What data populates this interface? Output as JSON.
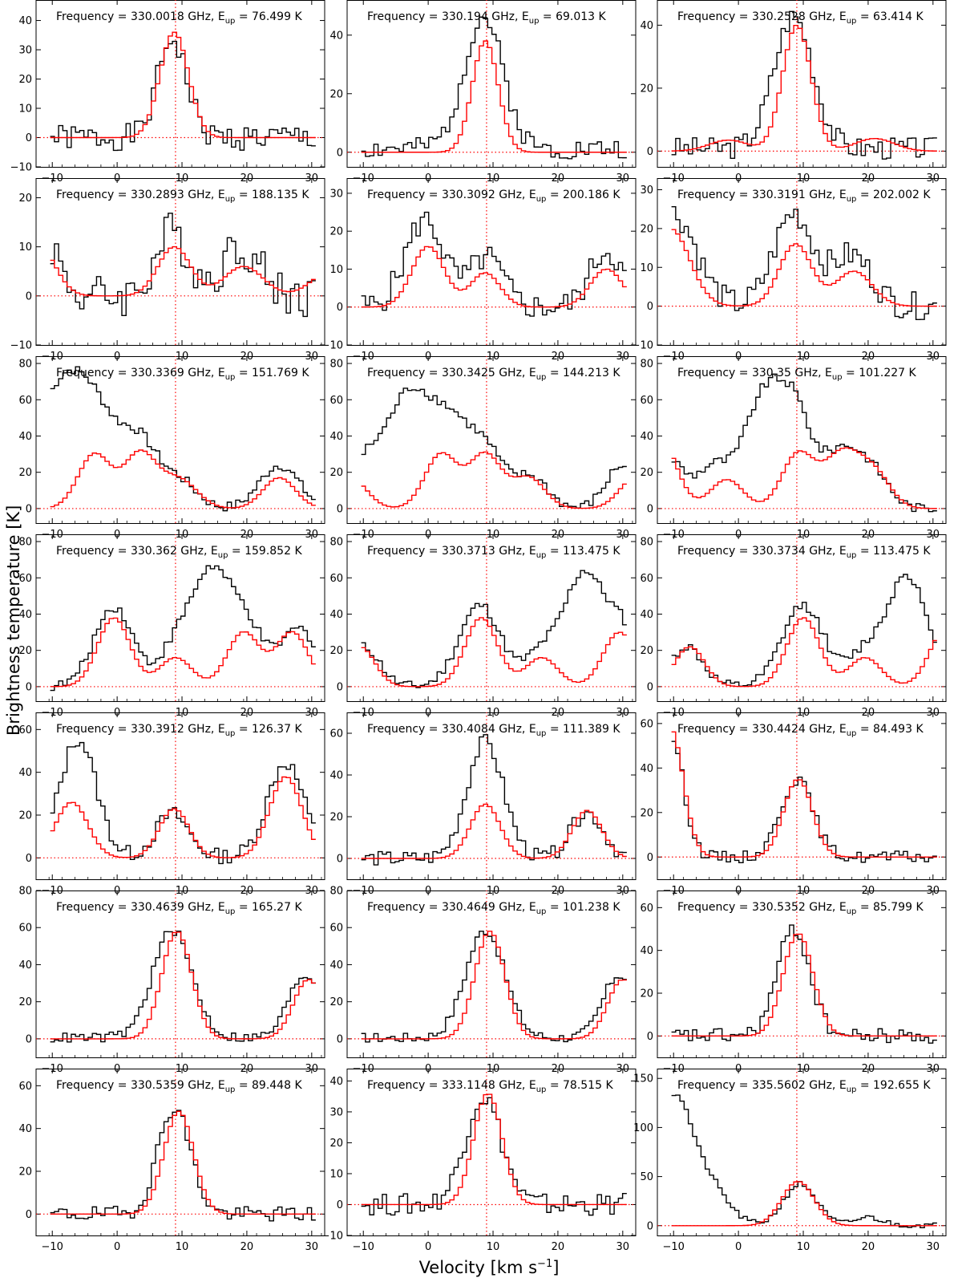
{
  "figure": {
    "ylabel": "Brightness temperature [K]",
    "xlabel_main": "Velocity [km s",
    "xlabel_sup": "−1",
    "xlabel_end": "]",
    "colors": {
      "observed": "#000000",
      "model": "#ff0000",
      "guides": "#ff0000"
    }
  },
  "chart_data": [
    {
      "type": "line",
      "freq": "330.0018",
      "eup": "76.499",
      "xlim": [
        -12.5,
        32
      ],
      "ylim": [
        -10,
        47
      ],
      "yticks": [
        -10,
        0,
        10,
        20,
        30,
        40
      ],
      "xticks": [
        -10,
        0,
        10,
        20,
        30
      ],
      "vline": 9,
      "model": [
        {
          "c": 8.8,
          "a": 36,
          "w": 2.2
        }
      ],
      "obs_peak": [
        {
          "c": 8.5,
          "a": 34,
          "w": 2.2
        }
      ],
      "base_obs": 0,
      "noise": 5,
      "seed": 1
    },
    {
      "type": "line",
      "freq": "330.194",
      "eup": "69.013",
      "xlim": [
        -12.5,
        32
      ],
      "ylim": [
        -5,
        52
      ],
      "yticks": [
        0,
        20,
        40
      ],
      "xticks": [
        -10,
        0,
        10,
        20,
        30
      ],
      "vline": 9,
      "model": [
        {
          "c": 8.8,
          "a": 38,
          "w": 2.0
        }
      ],
      "obs_peak": [
        {
          "c": 8.5,
          "a": 45,
          "w": 3.0
        }
      ],
      "base_obs": 4,
      "noise": 4,
      "seed": 2
    },
    {
      "type": "line",
      "freq": "330.2528",
      "eup": "63.414",
      "xlim": [
        -12.5,
        32
      ],
      "ylim": [
        -5,
        48
      ],
      "yticks": [
        0,
        20,
        40
      ],
      "xticks": [
        -10,
        0,
        10,
        20,
        30
      ],
      "vline": 9,
      "model": [
        {
          "c": 9.0,
          "a": 40,
          "w": 2.2
        },
        {
          "c": -1.5,
          "a": 3.5,
          "w": 3.0
        },
        {
          "c": 21,
          "a": 4,
          "w": 3.0
        }
      ],
      "obs_peak": [
        {
          "c": 8.5,
          "a": 42,
          "w": 3.0
        }
      ],
      "base_obs": 3,
      "noise": 4,
      "seed": 3
    },
    {
      "type": "line",
      "freq": "330.2893",
      "eup": "188.135",
      "xlim": [
        -12.5,
        32
      ],
      "ylim": [
        -10,
        24
      ],
      "yticks": [
        -10,
        0,
        10,
        20
      ],
      "xticks": [
        -10,
        0,
        10,
        20,
        30
      ],
      "vline": 9,
      "model": [
        {
          "c": 8.8,
          "a": 10,
          "w": 2.5
        },
        {
          "c": 19.5,
          "a": 6,
          "w": 3.0
        },
        {
          "c": -12,
          "a": 10,
          "w": 2.5
        },
        {
          "c": 33,
          "a": 5,
          "w": 3.0
        }
      ],
      "obs_peak": [
        {
          "c": 8.5,
          "a": 13,
          "w": 2.5
        },
        {
          "c": 19,
          "a": 10,
          "w": 3.0
        },
        {
          "c": -11,
          "a": 12,
          "w": 2.0
        }
      ],
      "base_obs": 0,
      "noise": 5,
      "seed": 4
    },
    {
      "type": "line",
      "freq": "330.3092",
      "eup": "200.186",
      "xlim": [
        -12.5,
        32
      ],
      "ylim": [
        -10,
        34
      ],
      "yticks": [
        -10,
        0,
        10,
        20,
        30
      ],
      "xticks": [
        -10,
        0,
        10,
        20,
        30
      ],
      "vline": 9,
      "model": [
        {
          "c": 0,
          "a": 16,
          "w": 2.5
        },
        {
          "c": 8.8,
          "a": 9,
          "w": 2.3
        },
        {
          "c": 27.5,
          "a": 10,
          "w": 2.5
        }
      ],
      "obs_peak": [
        {
          "c": -0.5,
          "a": 23,
          "w": 3.0
        },
        {
          "c": 9,
          "a": 13,
          "w": 2.5
        },
        {
          "c": 27.5,
          "a": 15,
          "w": 2.5
        }
      ],
      "base_obs": 0,
      "noise": 4,
      "seed": 5
    },
    {
      "type": "line",
      "freq": "330.3191",
      "eup": "202.002",
      "xlim": [
        -12.5,
        32
      ],
      "ylim": [
        -10,
        33
      ],
      "yticks": [
        -10,
        0,
        10,
        20,
        30
      ],
      "xticks": [
        -10,
        0,
        10,
        20,
        30
      ],
      "vline": 9,
      "model": [
        {
          "c": -10.5,
          "a": 20,
          "w": 3.0
        },
        {
          "c": 8.8,
          "a": 16,
          "w": 2.5
        },
        {
          "c": 17.8,
          "a": 9,
          "w": 2.8
        }
      ],
      "obs_peak": [
        {
          "c": -10,
          "a": 24,
          "w": 3.5
        },
        {
          "c": 8.5,
          "a": 24,
          "w": 3.0
        },
        {
          "c": 17.5,
          "a": 13,
          "w": 3.0
        }
      ],
      "base_obs": 0,
      "noise": 4,
      "seed": 6
    },
    {
      "type": "line",
      "freq": "330.3369",
      "eup": "151.769",
      "xlim": [
        -12.5,
        32
      ],
      "ylim": [
        -8,
        84
      ],
      "yticks": [
        0,
        20,
        40,
        60,
        80
      ],
      "xticks": [
        -10,
        0,
        10,
        20,
        30
      ],
      "vline": 9,
      "model": [
        {
          "c": -3.5,
          "a": 30,
          "w": 2.5
        },
        {
          "c": 3.5,
          "a": 30,
          "w": 2.5
        },
        {
          "c": 9.5,
          "a": 16,
          "w": 2.8
        },
        {
          "c": 25,
          "a": 17,
          "w": 2.5
        }
      ],
      "obs_peak": [
        {
          "c": -9,
          "a": 62,
          "w": 4.0
        },
        {
          "c": -3,
          "a": 42,
          "w": 3.5
        },
        {
          "c": 3.5,
          "a": 33,
          "w": 2.8
        },
        {
          "c": 9.5,
          "a": 15,
          "w": 2.8
        },
        {
          "c": 25,
          "a": 24,
          "w": 3.0
        }
      ],
      "base_obs": 0,
      "noise": 3,
      "seed": 7
    },
    {
      "type": "line",
      "freq": "330.3425",
      "eup": "144.213",
      "xlim": [
        -12.5,
        32
      ],
      "ylim": [
        -8,
        84
      ],
      "yticks": [
        0,
        20,
        40,
        60,
        80
      ],
      "xticks": [
        -10,
        0,
        10,
        20,
        30
      ],
      "vline": 9,
      "model": [
        {
          "c": -12,
          "a": 17,
          "w": 2.5
        },
        {
          "c": 2,
          "a": 30,
          "w": 2.5
        },
        {
          "c": 8.8,
          "a": 30,
          "w": 2.5
        },
        {
          "c": 15.5,
          "a": 17,
          "w": 2.5
        },
        {
          "c": 32,
          "a": 17,
          "w": 2.5
        }
      ],
      "obs_peak": [
        {
          "c": -10,
          "a": 22,
          "w": 2.5
        },
        {
          "c": -3,
          "a": 62,
          "w": 3.5
        },
        {
          "c": 3.5,
          "a": 40,
          "w": 3.0
        },
        {
          "c": 9,
          "a": 30,
          "w": 2.8
        },
        {
          "c": 16,
          "a": 17,
          "w": 2.5
        },
        {
          "c": 30,
          "a": 24,
          "w": 2.5
        }
      ],
      "base_obs": 0,
      "noise": 3,
      "seed": 8
    },
    {
      "type": "line",
      "freq": "330.35",
      "eup": "101.227",
      "xlim": [
        -12.5,
        32
      ],
      "ylim": [
        -8,
        84
      ],
      "yticks": [
        0,
        20,
        40,
        60,
        80
      ],
      "xticks": [
        -10,
        0,
        10,
        20,
        30
      ],
      "vline": 9,
      "model": [
        {
          "c": -12,
          "a": 38,
          "w": 2.5
        },
        {
          "c": -1.8,
          "a": 16,
          "w": 2.5
        },
        {
          "c": 9.2,
          "a": 30,
          "w": 2.5
        },
        {
          "c": 16,
          "a": 30,
          "w": 2.8
        },
        {
          "c": 21,
          "a": 18,
          "w": 2.5
        }
      ],
      "obs_peak": [
        {
          "c": -11,
          "a": 28,
          "w": 2.5
        },
        {
          "c": -4,
          "a": 22,
          "w": 2.5
        },
        {
          "c": 4,
          "a": 62,
          "w": 3.2
        },
        {
          "c": 9,
          "a": 42,
          "w": 2.5
        },
        {
          "c": 16,
          "a": 32,
          "w": 3.0
        },
        {
          "c": 21,
          "a": 16,
          "w": 2.5
        }
      ],
      "base_obs": 0,
      "noise": 3,
      "seed": 9
    },
    {
      "type": "line",
      "freq": "330.362",
      "eup": "159.852",
      "xlim": [
        -12.5,
        32
      ],
      "ylim": [
        -8,
        84
      ],
      "yticks": [
        0,
        20,
        40,
        60,
        80
      ],
      "xticks": [
        -10,
        0,
        10,
        20,
        30
      ],
      "vline": 9,
      "model": [
        {
          "c": -0.5,
          "a": 38,
          "w": 2.5
        },
        {
          "c": 9,
          "a": 16,
          "w": 2.5
        },
        {
          "c": 19.5,
          "a": 30,
          "w": 2.5
        },
        {
          "c": 27,
          "a": 30,
          "w": 2.5
        }
      ],
      "obs_peak": [
        {
          "c": -0.5,
          "a": 44,
          "w": 3.0
        },
        {
          "c": 9,
          "a": 20,
          "w": 2.5
        },
        {
          "c": 14.5,
          "a": 62,
          "w": 3.0
        },
        {
          "c": 20,
          "a": 30,
          "w": 2.5
        },
        {
          "c": 28,
          "a": 32,
          "w": 3.0
        }
      ],
      "base_obs": 0,
      "noise": 3,
      "seed": 10
    },
    {
      "type": "line",
      "freq": "330.3713",
      "eup": "113.475",
      "xlim": [
        -12.5,
        32
      ],
      "ylim": [
        -8,
        84
      ],
      "yticks": [
        0,
        20,
        40,
        60,
        80
      ],
      "xticks": [
        -10,
        0,
        10,
        20,
        30
      ],
      "vline": 9,
      "model": [
        {
          "c": -10.5,
          "a": 22,
          "w": 2.3
        },
        {
          "c": 8.2,
          "a": 38,
          "w": 2.5
        },
        {
          "c": 17.5,
          "a": 16,
          "w": 2.5
        },
        {
          "c": 29.5,
          "a": 30,
          "w": 2.5
        }
      ],
      "obs_peak": [
        {
          "c": -10,
          "a": 22,
          "w": 2.5
        },
        {
          "c": 8,
          "a": 45,
          "w": 3.2
        },
        {
          "c": 17.5,
          "a": 18,
          "w": 2.5
        },
        {
          "c": 24,
          "a": 62,
          "w": 3.0
        },
        {
          "c": 30,
          "a": 30,
          "w": 2.5
        }
      ],
      "base_obs": 0,
      "noise": 3,
      "seed": 11
    },
    {
      "type": "line",
      "freq": "330.3734",
      "eup": "113.475",
      "xlim": [
        -12.5,
        32
      ],
      "ylim": [
        -8,
        84
      ],
      "yticks": [
        0,
        20,
        40,
        60,
        80
      ],
      "xticks": [
        -10,
        0,
        10,
        20,
        30
      ],
      "vline": 9,
      "model": [
        {
          "c": -7.5,
          "a": 22,
          "w": 2.3
        },
        {
          "c": 10,
          "a": 38,
          "w": 2.5
        },
        {
          "c": 19.5,
          "a": 16,
          "w": 2.5
        },
        {
          "c": 32,
          "a": 32,
          "w": 2.5
        }
      ],
      "obs_peak": [
        {
          "c": -8,
          "a": 22,
          "w": 2.5
        },
        {
          "c": 10,
          "a": 45,
          "w": 3.2
        },
        {
          "c": 19.5,
          "a": 18,
          "w": 2.5
        },
        {
          "c": 26,
          "a": 62,
          "w": 3.0
        }
      ],
      "base_obs": 0,
      "noise": 3,
      "seed": 12
    },
    {
      "type": "line",
      "freq": "330.3912",
      "eup": "126.37",
      "xlim": [
        -12.5,
        32
      ],
      "ylim": [
        -10,
        68
      ],
      "yticks": [
        0,
        20,
        40,
        60
      ],
      "xticks": [
        -10,
        0,
        10,
        20,
        30
      ],
      "vline": 9,
      "model": [
        {
          "c": -7,
          "a": 26,
          "w": 2.5
        },
        {
          "c": 8.8,
          "a": 23,
          "w": 2.3
        },
        {
          "c": 26,
          "a": 38,
          "w": 2.5
        }
      ],
      "obs_peak": [
        {
          "c": -6,
          "a": 55,
          "w": 2.8
        },
        {
          "c": 8.5,
          "a": 20,
          "w": 2.5
        },
        {
          "c": 26,
          "a": 44,
          "w": 2.8
        }
      ],
      "base_obs": 2,
      "noise": 4,
      "seed": 13
    },
    {
      "type": "line",
      "freq": "330.4084",
      "eup": "111.389",
      "xlim": [
        -12.5,
        32
      ],
      "ylim": [
        -10,
        70
      ],
      "yticks": [
        0,
        20,
        40,
        60
      ],
      "xticks": [
        -10,
        0,
        10,
        20,
        30
      ],
      "vline": 9,
      "model": [
        {
          "c": 8.8,
          "a": 26,
          "w": 2.3
        },
        {
          "c": 24.5,
          "a": 23,
          "w": 2.3
        }
      ],
      "obs_peak": [
        {
          "c": 8.8,
          "a": 56,
          "w": 2.8
        },
        {
          "c": 24.5,
          "a": 22,
          "w": 2.5
        }
      ],
      "base_obs": 0,
      "noise": 4,
      "seed": 14
    },
    {
      "type": "line",
      "freq": "330.4424",
      "eup": "84.493",
      "xlim": [
        -12.5,
        32
      ],
      "ylim": [
        -10,
        65
      ],
      "yticks": [
        0,
        20,
        40,
        60
      ],
      "xticks": [
        -10,
        0,
        10,
        20,
        30
      ],
      "vline": 9,
      "model": [
        {
          "c": -10.5,
          "a": 58,
          "w": 2.0
        },
        {
          "c": 9.2,
          "a": 35,
          "w": 2.2
        }
      ],
      "obs_peak": [
        {
          "c": -10.5,
          "a": 55,
          "w": 2.0
        },
        {
          "c": 9,
          "a": 35,
          "w": 2.5
        }
      ],
      "base_obs": 0,
      "noise": 3,
      "seed": 15
    },
    {
      "type": "line",
      "freq": "330.4639",
      "eup": "165.27",
      "xlim": [
        -12.5,
        32
      ],
      "ylim": [
        -10,
        80
      ],
      "yticks": [
        0,
        20,
        40,
        60,
        80
      ],
      "xticks": [
        -10,
        0,
        10,
        20,
        30
      ],
      "vline": 9,
      "model": [
        {
          "c": 9.2,
          "a": 58,
          "w": 2.3
        },
        {
          "c": 29.5,
          "a": 32,
          "w": 2.3
        }
      ],
      "obs_peak": [
        {
          "c": 8.5,
          "a": 58,
          "w": 3.0
        },
        {
          "c": 29,
          "a": 34,
          "w": 2.5
        }
      ],
      "base_obs": 2,
      "noise": 3,
      "seed": 16
    },
    {
      "type": "line",
      "freq": "330.4649",
      "eup": "101.238",
      "xlim": [
        -12.5,
        32
      ],
      "ylim": [
        -10,
        80
      ],
      "yticks": [
        0,
        20,
        40,
        60,
        80
      ],
      "xticks": [
        -10,
        0,
        10,
        20,
        30
      ],
      "vline": 9,
      "model": [
        {
          "c": 9.5,
          "a": 58,
          "w": 2.3
        },
        {
          "c": 30,
          "a": 32,
          "w": 2.3
        }
      ],
      "obs_peak": [
        {
          "c": 8.8,
          "a": 58,
          "w": 3.0
        },
        {
          "c": 29.5,
          "a": 34,
          "w": 2.5
        }
      ],
      "base_obs": 2,
      "noise": 3,
      "seed": 17
    },
    {
      "type": "line",
      "freq": "330.5352",
      "eup": "85.799",
      "xlim": [
        -12.5,
        32
      ],
      "ylim": [
        -10,
        68
      ],
      "yticks": [
        0,
        20,
        40,
        60
      ],
      "xticks": [
        -10,
        0,
        10,
        20,
        30
      ],
      "vline": 9,
      "model": [
        {
          "c": 9.2,
          "a": 48,
          "w": 2.3
        }
      ],
      "obs_peak": [
        {
          "c": 8.5,
          "a": 50,
          "w": 2.5
        }
      ],
      "base_obs": 0,
      "noise": 4,
      "seed": 18
    },
    {
      "type": "line",
      "freq": "330.5359",
      "eup": "89.448",
      "xlim": [
        -12.5,
        32
      ],
      "ylim": [
        -10,
        68
      ],
      "yticks": [
        0,
        20,
        40,
        60
      ],
      "xticks": [
        -10,
        0,
        10,
        20,
        30
      ],
      "vline": 9,
      "model": [
        {
          "c": 9.5,
          "a": 48,
          "w": 2.3
        }
      ],
      "obs_peak": [
        {
          "c": 8.8,
          "a": 50,
          "w": 2.5
        }
      ],
      "base_obs": 0,
      "noise": 4,
      "seed": 19
    },
    {
      "type": "line",
      "freq": "333.1148",
      "eup": "78.515",
      "xlim": [
        -12.5,
        32
      ],
      "ylim": [
        -10,
        44
      ],
      "yticks": [
        -10,
        0,
        10,
        20,
        30,
        40
      ],
      "xticks": [
        -10,
        0,
        10,
        20,
        30
      ],
      "vline": 9,
      "model": [
        {
          "c": 9.2,
          "a": 36,
          "w": 2.2
        }
      ],
      "obs_peak": [
        {
          "c": 8.5,
          "a": 35,
          "w": 2.8
        }
      ],
      "base_obs": 0,
      "noise": 4,
      "seed": 20
    },
    {
      "type": "line",
      "freq": "335.5602",
      "eup": "192.655",
      "xlim": [
        -12.5,
        32
      ],
      "ylim": [
        -10,
        160
      ],
      "yticks": [
        0,
        50,
        100,
        150
      ],
      "xticks": [
        -10,
        0,
        10,
        20,
        30
      ],
      "vline": 9,
      "model": [
        {
          "c": 9.2,
          "a": 45,
          "w": 2.5
        }
      ],
      "obs_peak": [
        {
          "c": -10,
          "a": 122,
          "w": 2.5
        },
        {
          "c": -5,
          "a": 45,
          "w": 3.0
        },
        {
          "c": 9.5,
          "a": 42,
          "w": 2.5
        },
        {
          "c": 20,
          "a": 8,
          "w": 2.0
        }
      ],
      "base_obs": 2,
      "noise": 3,
      "seed": 21
    }
  ]
}
